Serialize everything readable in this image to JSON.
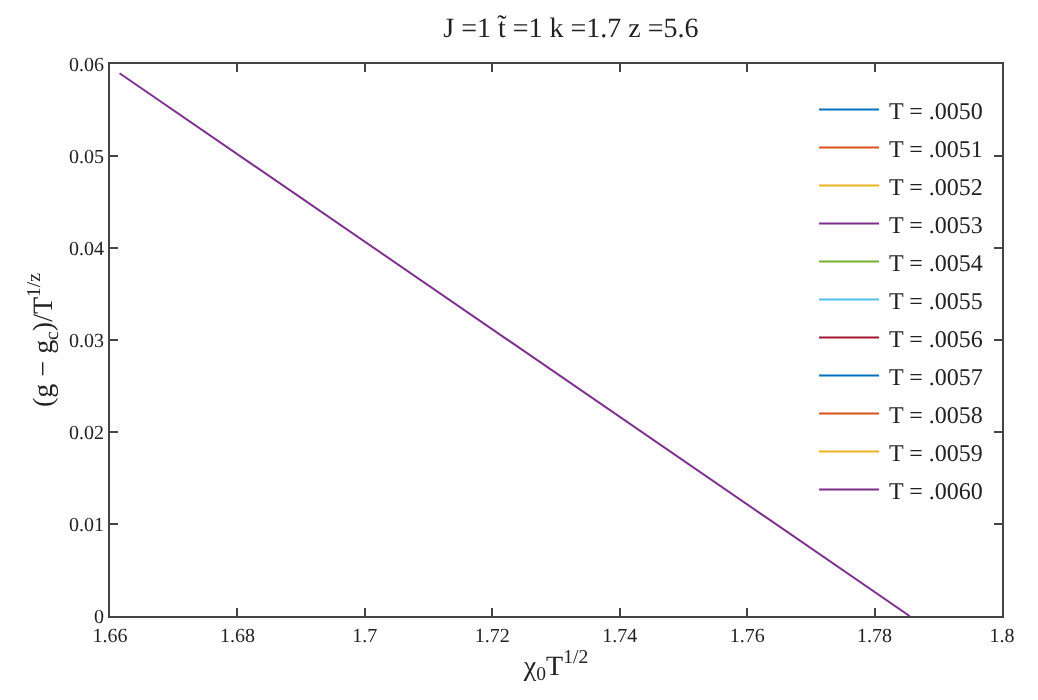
{
  "chart_data": {
    "type": "line",
    "title": "J =1 t̃ =1 k =1.7 z =5.6",
    "xlabel": "χ$_{0}$T$^{1/2}$",
    "ylabel": "(g − g$_{c}$)/T$^{1/z}$",
    "x": [
      1.6615,
      1.7855
    ],
    "series": [
      {
        "name": "T = .0050",
        "color": "#0072bd",
        "values": [
          null,
          null
        ]
      },
      {
        "name": "T = .0051",
        "color": "#d95319",
        "values": [
          null,
          null
        ]
      },
      {
        "name": "T = .0052",
        "color": "#edb120",
        "values": [
          null,
          null
        ]
      },
      {
        "name": "T = .0053",
        "color": "#7e2f8e",
        "values": [
          null,
          null
        ]
      },
      {
        "name": "T = .0054",
        "color": "#77ac30",
        "values": [
          null,
          null
        ]
      },
      {
        "name": "T = .0055",
        "color": "#4dbeee",
        "values": [
          null,
          null
        ]
      },
      {
        "name": "T = .0056",
        "color": "#a2142f",
        "values": [
          null,
          null
        ]
      },
      {
        "name": "T = .0057",
        "color": "#0072bd",
        "values": [
          null,
          null
        ]
      },
      {
        "name": "T = .0058",
        "color": "#d95319",
        "values": [
          null,
          null
        ]
      },
      {
        "name": "T = .0059",
        "color": "#edb120",
        "values": [
          null,
          null
        ]
      },
      {
        "name": "T = .0060",
        "color": "#7e2f8e",
        "values": [
          0.059,
          0
        ]
      }
    ],
    "xlim": [
      1.66,
      1.8
    ],
    "xticks": [
      1.66,
      1.68,
      1.7,
      1.72,
      1.74,
      1.76,
      1.78,
      1.8
    ],
    "ylim": [
      0,
      0.06
    ],
    "yticks": [
      0,
      0.01,
      0.02,
      0.03,
      0.04,
      0.05,
      0.06
    ],
    "legend": "top right",
    "line_style": "solid",
    "marker": "none"
  }
}
